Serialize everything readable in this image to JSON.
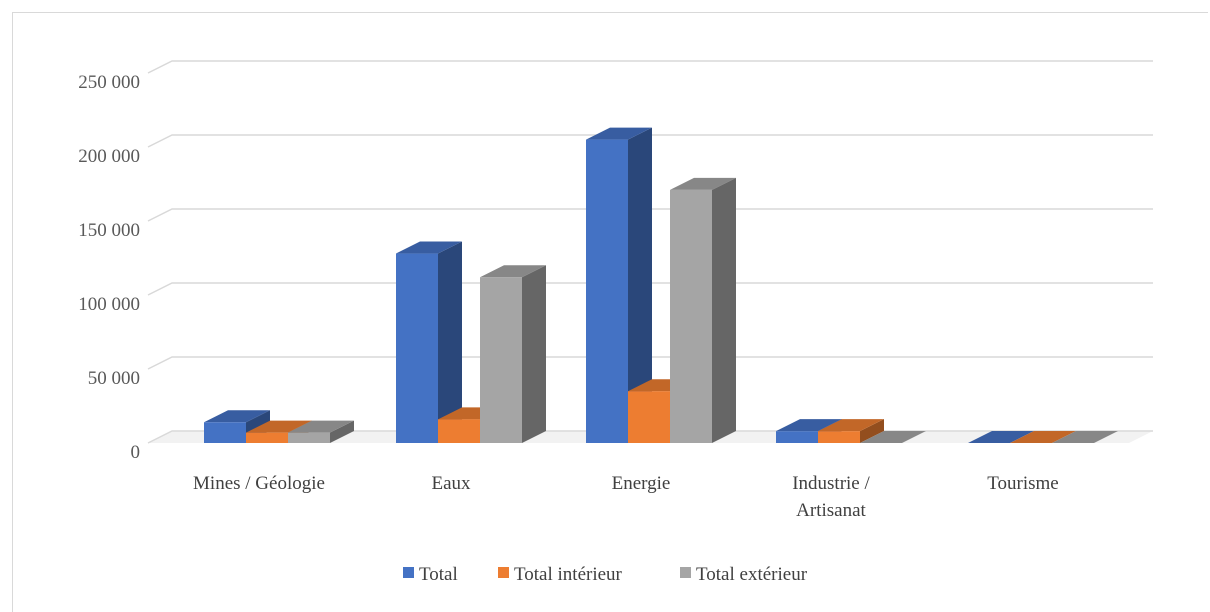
{
  "chart_data": {
    "type": "bar",
    "style": "3d-clustered-column",
    "categories": [
      "Mines / Géologie",
      "Eaux",
      "Energie",
      "Industrie / Artisanat",
      "Tourisme"
    ],
    "category_lines": [
      [
        "Mines / Géologie"
      ],
      [
        "Eaux"
      ],
      [
        "Energie"
      ],
      [
        "Industrie /",
        "Artisanat"
      ],
      [
        "Tourisme"
      ]
    ],
    "series": [
      {
        "name": "Total",
        "color": "#4472c4",
        "values": [
          14000,
          128000,
          205000,
          8000,
          0
        ]
      },
      {
        "name": "Total intérieur",
        "color": "#ed7d31",
        "values": [
          7000,
          16000,
          35000,
          8000,
          0
        ]
      },
      {
        "name": "Total extérieur",
        "color": "#a5a5a5",
        "values": [
          7000,
          112000,
          171000,
          0,
          0
        ]
      }
    ],
    "y_ticks": [
      "0",
      "50 000",
      "100 000",
      "150 000",
      "200 000",
      "250 000"
    ],
    "ylim": [
      0,
      250000
    ],
    "grid": true,
    "legend_position": "bottom",
    "title": "",
    "xlabel": "",
    "ylabel": ""
  }
}
